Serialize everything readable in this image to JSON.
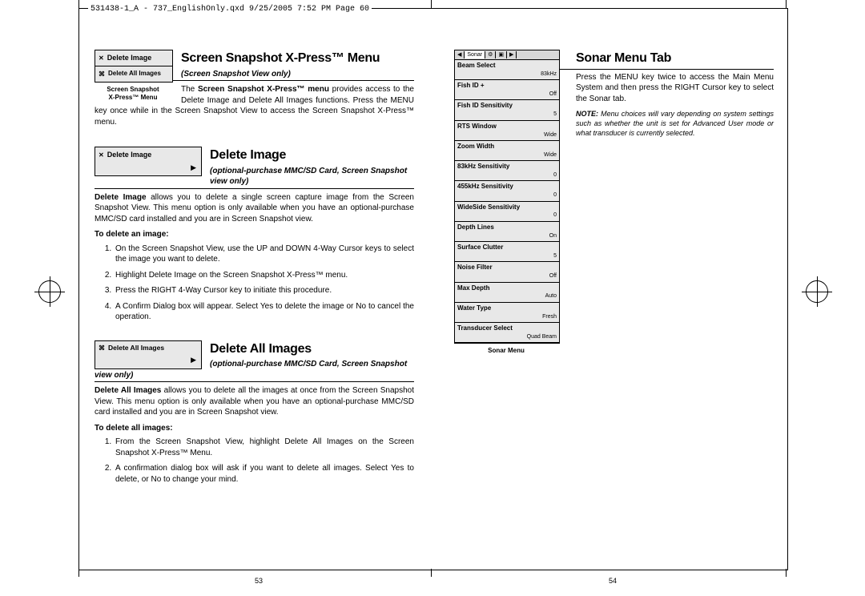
{
  "header_line": "531438-1_A - 737_EnglishOnly.qxd  9/25/2005  7:52 PM  Page 60",
  "left": {
    "s1": {
      "title": "Screen Snapshot X-Press™ Menu",
      "subtitle": "(Screen Snapshot View only)",
      "fig": {
        "item1": "Delete Image",
        "item2": "Delete All Images",
        "caption": "Screen Snapshot\nX-Press™ Menu"
      },
      "body_pre": "The ",
      "body_bold": "Screen Snapshot X-Press™ menu",
      "body_post": " provides access to the Delete Image and Delete All Images functions.  Press the MENU key once while in the Screen Snapshot View to access the Screen Snapshot X-Press™ menu."
    },
    "s2": {
      "title": "Delete Image",
      "subtitle": "(optional-purchase MMC/SD Card, Screen Snapshot view only)",
      "fig_label": "Delete Image",
      "body_bold": "Delete Image",
      "body_post": " allows you to delete a single screen capture image from the Screen Snapshot View. This menu option is only available when you have an optional-purchase MMC/SD card installed and you are in Screen Snapshot view.",
      "instr_title": "To delete an image:",
      "steps": [
        "On the Screen Snapshot View, use the UP and DOWN 4-Way Cursor keys to select the image you want to delete.",
        "Highlight Delete Image on the Screen Snapshot X-Press™ menu.",
        "Press the RIGHT 4-Way Cursor key to initiate this procedure.",
        "A Confirm Dialog box will appear.  Select Yes to delete the image or No to cancel the operation."
      ]
    },
    "s3": {
      "title": "Delete All Images",
      "subtitle": "(optional-purchase MMC/SD Card, Screen Snapshot view only)",
      "fig_label": "Delete All Images",
      "body_bold": "Delete All Images",
      "body_post": " allows you to delete all the images at once from the Screen Snapshot View. This menu option is only available when you have an optional-purchase MMC/SD card installed and you are in Screen Snapshot view.",
      "instr_title": "To delete all images:",
      "steps": [
        "From the Screen Snapshot View, highlight Delete All Images on the Screen Snapshot X-Press™ Menu.",
        "A confirmation dialog box will ask if you want to delete all images. Select Yes to delete, or No to change your mind."
      ]
    },
    "page_num": "53"
  },
  "right": {
    "title": "Sonar Menu Tab",
    "body": "Press the MENU key twice to access the Main Menu System and then press the RIGHT Cursor key to select the Sonar tab.",
    "note_bold": "NOTE:",
    "note": " Menu choices will vary depending on system settings such as whether the unit is set for Advanced User mode or what transducer is currently selected.",
    "sonar_tab_label": "Sonar",
    "sonar_items": [
      {
        "k": "Beam Select",
        "v": "83kHz"
      },
      {
        "k": "Fish ID +",
        "v": "Off"
      },
      {
        "k": "Fish ID Sensitivity",
        "v": "5"
      },
      {
        "k": "RTS Window",
        "v": "Wide"
      },
      {
        "k": "Zoom Width",
        "v": "Wide"
      },
      {
        "k": "83kHz Sensitivity",
        "v": "0"
      },
      {
        "k": "455kHz Sensitivity",
        "v": "0"
      },
      {
        "k": "WideSide Sensitivity",
        "v": "0"
      },
      {
        "k": "Depth Lines",
        "v": "On"
      },
      {
        "k": "Surface Clutter",
        "v": "5"
      },
      {
        "k": "Noise Filter",
        "v": "Off"
      },
      {
        "k": "Max Depth",
        "v": "Auto"
      },
      {
        "k": "Water Type",
        "v": "Fresh"
      },
      {
        "k": "Transducer Select",
        "v": "Quad Beam"
      }
    ],
    "fig_caption": "Sonar Menu",
    "page_num": "54"
  }
}
